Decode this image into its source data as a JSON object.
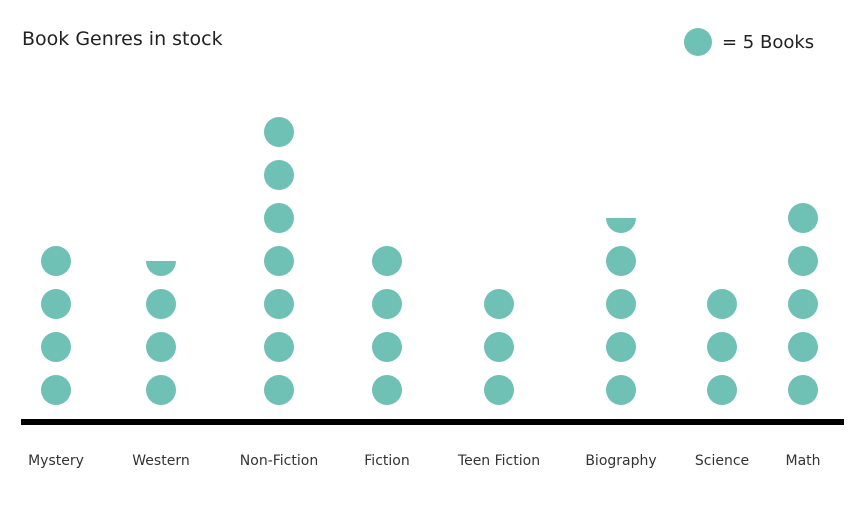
{
  "chart_data": {
    "type": "pictograph",
    "title": "Book Genres in stock",
    "legend": {
      "symbol": "circle",
      "label": "= 5 Books",
      "placement": "top-right"
    },
    "books_per_symbol": 5,
    "categories": [
      "Mystery",
      "Western",
      "Non-Fiction",
      "Fiction",
      "Teen Fiction",
      "Biography",
      "Science",
      "Math"
    ],
    "symbols": [
      4,
      3.5,
      7,
      4,
      3,
      4.5,
      3,
      5
    ],
    "values": [
      20,
      17.5,
      35,
      20,
      15,
      22.5,
      15,
      25
    ],
    "xlabel": "",
    "ylabel": "",
    "grid": false
  },
  "colors": {
    "symbol": "#6fc1b5",
    "baseline": "#000000",
    "text": "#222222"
  }
}
